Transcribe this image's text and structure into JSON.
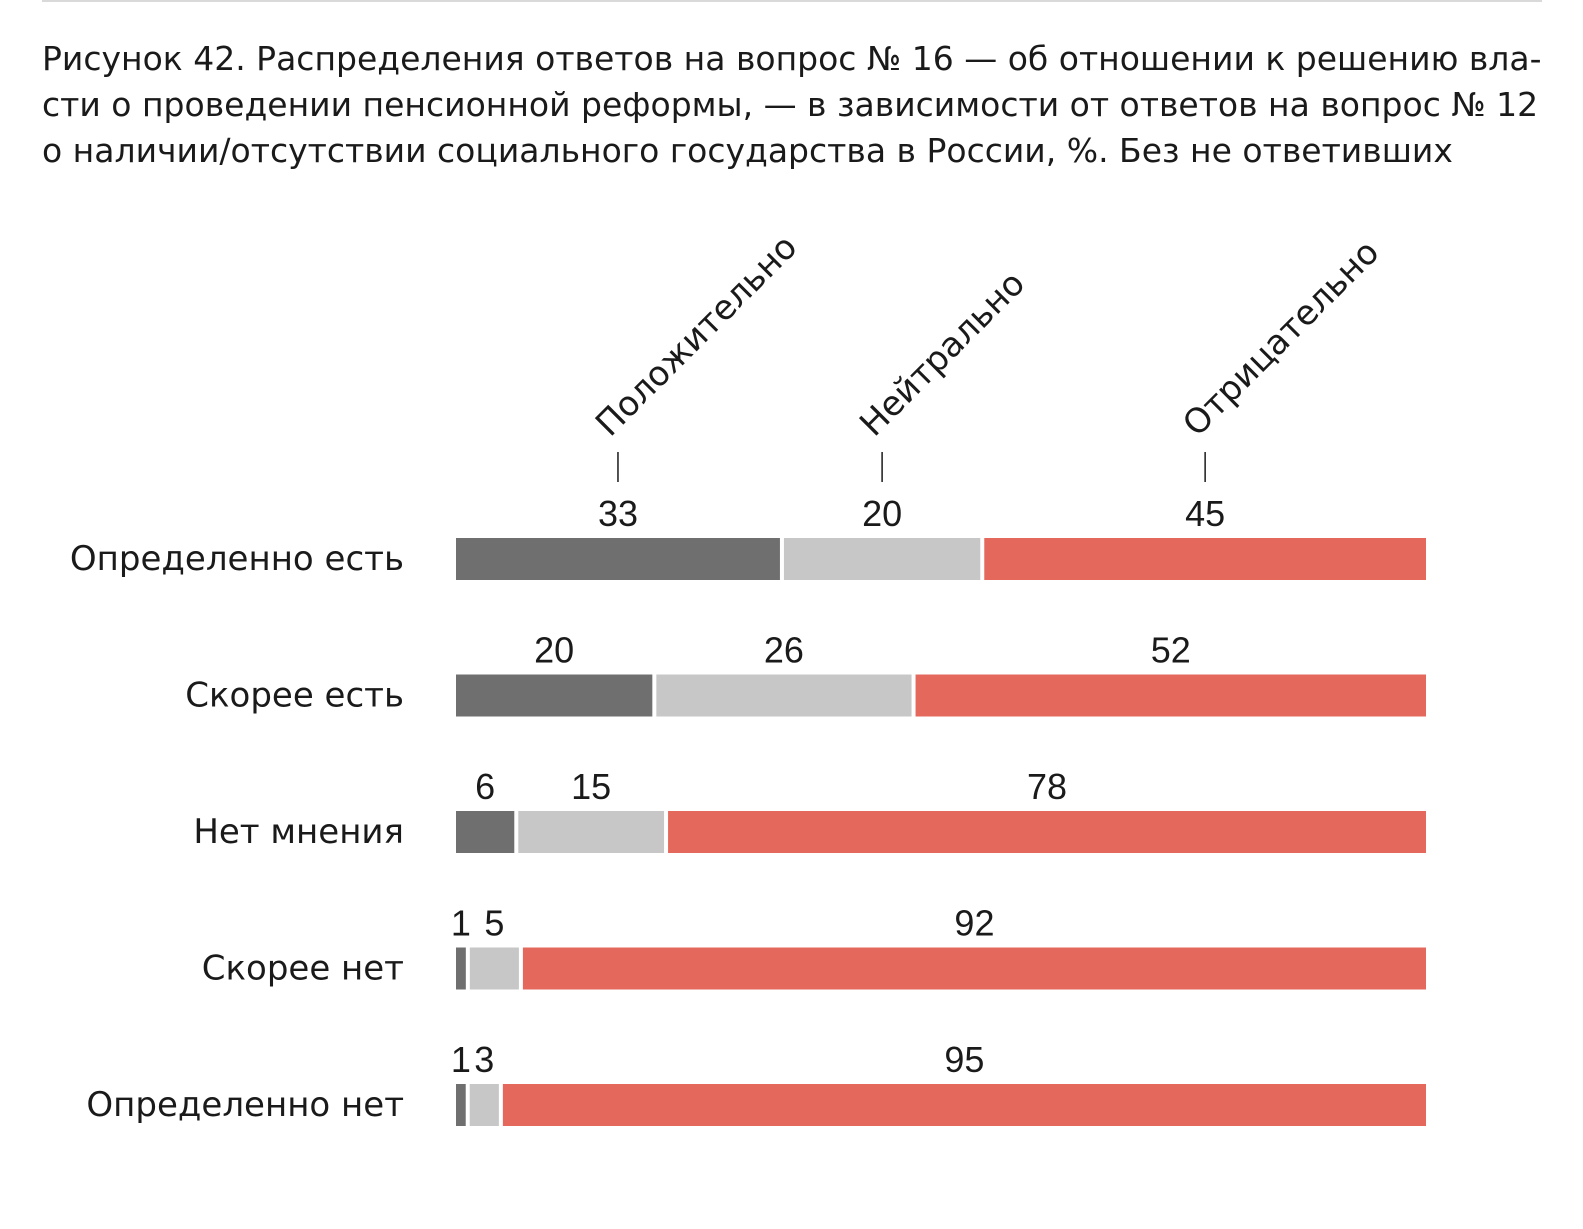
{
  "title_lines": [
    "Рисунок 42. Распределения ответов на вопрос № 16 — об отношении к решению вла-",
    "сти о проведении пенсионной реформы, — в зависимости от ответов на вопрос № 12",
    "о наличии/отсутствии социального государства в России, %. Без не ответивших"
  ],
  "chart_data": {
    "type": "bar",
    "orientation": "horizontal",
    "stacked": true,
    "categories": [
      "Определенно есть",
      "Скорее есть",
      "Нет мнения",
      "Скорее нет",
      "Определенно нет"
    ],
    "series": [
      {
        "name": "Положительно",
        "values": [
          33,
          20,
          6,
          1,
          1
        ],
        "color": "#6f6f6f"
      },
      {
        "name": "Нейтрально",
        "values": [
          20,
          26,
          15,
          5,
          3
        ],
        "color": "#c6c7c6"
      },
      {
        "name": "Отрицательно",
        "values": [
          45,
          52,
          78,
          92,
          95
        ],
        "color": "#e4695c"
      }
    ],
    "legend_position": "top, rotated labels",
    "grid": false,
    "xlabel": "",
    "ylabel": ""
  }
}
